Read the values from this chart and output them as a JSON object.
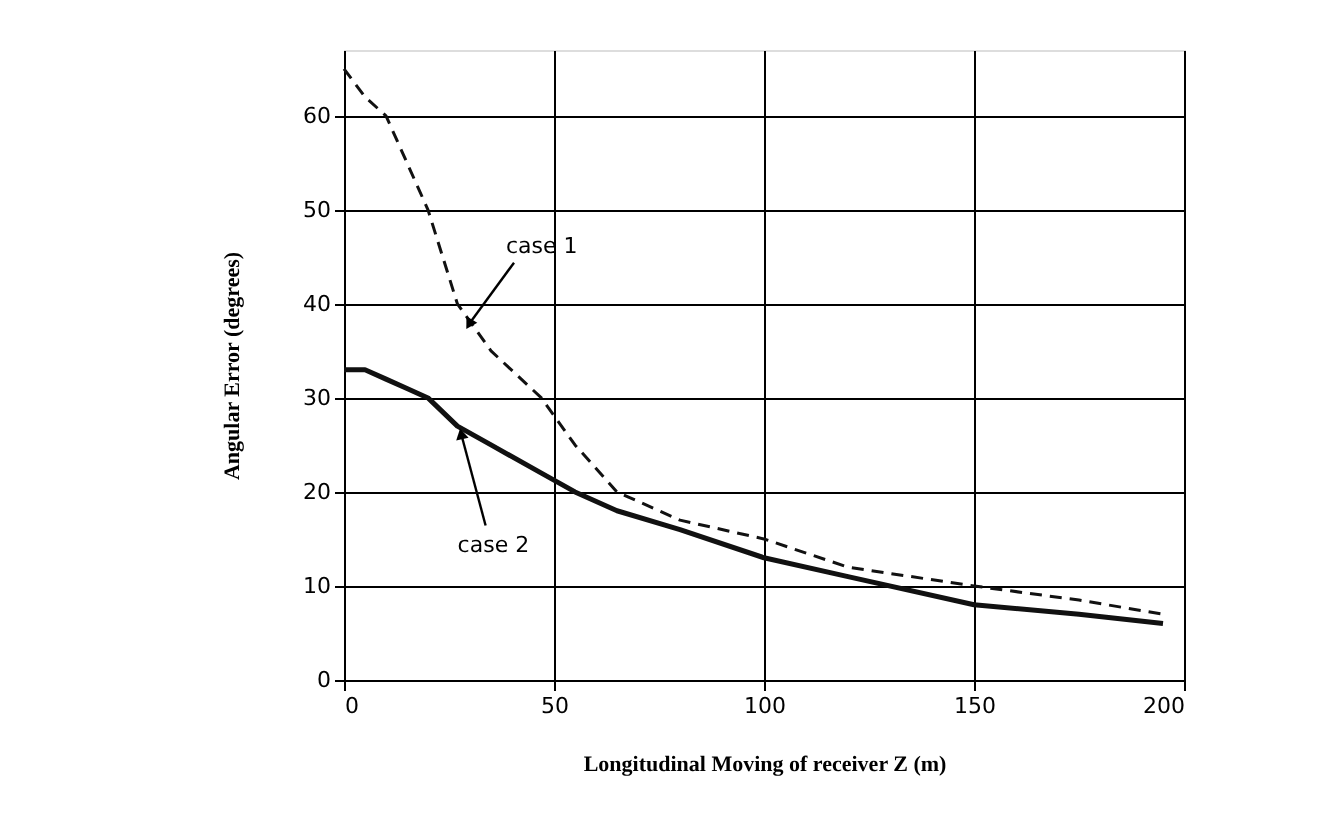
{
  "chart_data": {
    "type": "line",
    "xlabel": "Longitudinal Moving of receiver Z (m)",
    "ylabel": "Angular Error (degrees)",
    "x": [
      0,
      5,
      10,
      15,
      20,
      27,
      35,
      47,
      55,
      65,
      80,
      100,
      120,
      150,
      175,
      195
    ],
    "series": [
      {
        "color": "#111111",
        "line_style": "dashed",
        "values": [
          65,
          62,
          60,
          55,
          50,
          40,
          35,
          30,
          25,
          20,
          17,
          15,
          12,
          10,
          8.5,
          7
        ]
      },
      {
        "color": "#111111",
        "line_style": "solid",
        "values": [
          33,
          33,
          32,
          31,
          30,
          27,
          25,
          22,
          20,
          18,
          16,
          13,
          11,
          8,
          7,
          6
        ]
      }
    ],
    "xlim": [
      0,
      200
    ],
    "xticks": [
      0,
      50,
      100,
      150,
      200
    ],
    "ylim": [
      0,
      67
    ],
    "yticks": [
      0,
      10,
      20,
      30,
      40,
      50,
      60
    ],
    "grid": true,
    "annotations": [
      {
        "text": "case 1",
        "x": 30,
        "y": 38
      },
      {
        "text": "case 2",
        "x": 28,
        "y": 26
      }
    ]
  }
}
